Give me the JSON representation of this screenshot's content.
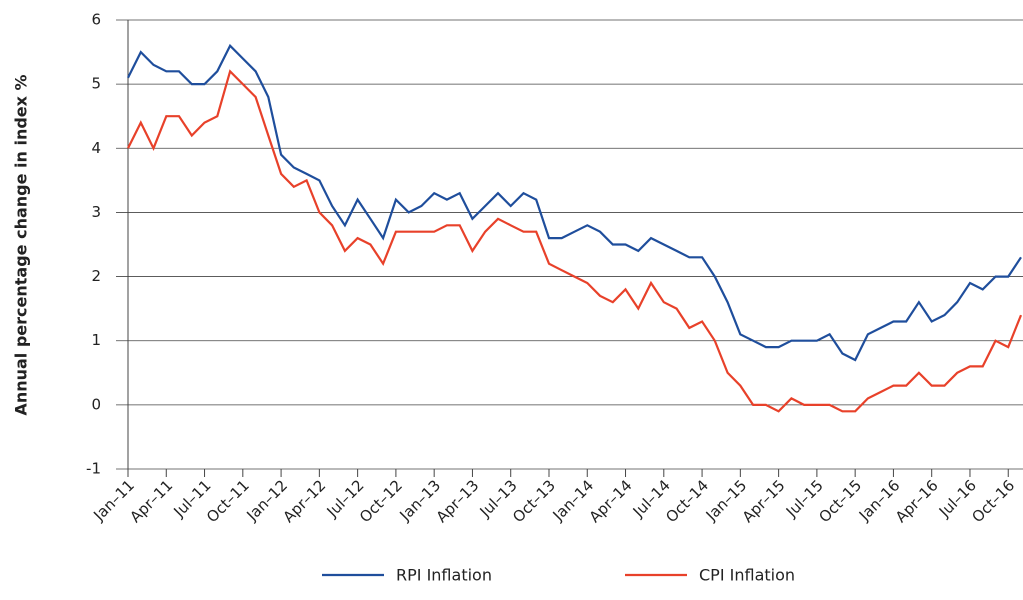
{
  "chart_data": {
    "type": "line",
    "y_label": "Annual percentage change in index %",
    "categories": [
      "Jan–11",
      null,
      null,
      "Apr–11",
      null,
      null,
      "Jul–11",
      null,
      null,
      "Oct–11",
      null,
      null,
      "Jan–12",
      null,
      null,
      "Apr–12",
      null,
      null,
      "Jul–12",
      null,
      null,
      "Oct–12",
      null,
      null,
      "Jan–13",
      null,
      null,
      "Apr–13",
      null,
      null,
      "Jul–13",
      null,
      null,
      "Oct–13",
      null,
      null,
      "Jan–14",
      null,
      null,
      "Apr–14",
      null,
      null,
      "Jul–14",
      null,
      null,
      "Oct–14",
      null,
      null,
      "Jan–15",
      null,
      null,
      "Apr–15",
      null,
      null,
      "Jul–15",
      null,
      null,
      "Oct–15",
      null,
      null,
      "Jan–16",
      null,
      null,
      "Apr–16",
      null,
      null,
      "Jul–16",
      null,
      null,
      "Oct–16",
      null
    ],
    "series": [
      {
        "name": "RPI Inflation",
        "color": "#1f4e9c",
        "values": [
          5.1,
          5.5,
          5.3,
          5.2,
          5.2,
          5.0,
          5.0,
          5.2,
          5.6,
          5.4,
          5.2,
          4.8,
          3.9,
          3.7,
          3.6,
          3.5,
          3.1,
          2.8,
          3.2,
          2.9,
          2.6,
          3.2,
          3.0,
          3.1,
          3.3,
          3.2,
          3.3,
          2.9,
          3.1,
          3.3,
          3.1,
          3.3,
          3.2,
          2.6,
          2.6,
          2.7,
          2.8,
          2.7,
          2.5,
          2.5,
          2.4,
          2.6,
          2.5,
          2.4,
          2.3,
          2.3,
          2.0,
          1.6,
          1.1,
          1.0,
          0.9,
          0.9,
          1.0,
          1.0,
          1.0,
          1.1,
          0.8,
          0.7,
          1.1,
          1.2,
          1.3,
          1.3,
          1.6,
          1.3,
          1.4,
          1.6,
          1.9,
          1.8,
          2.0,
          2.0,
          2.3
        ]
      },
      {
        "name": "CPI Inflation",
        "color": "#e8412a",
        "values": [
          4.0,
          4.4,
          4.0,
          4.5,
          4.5,
          4.2,
          4.4,
          4.5,
          5.2,
          5.0,
          4.8,
          4.2,
          3.6,
          3.4,
          3.5,
          3.0,
          2.8,
          2.4,
          2.6,
          2.5,
          2.2,
          2.7,
          2.7,
          2.7,
          2.7,
          2.8,
          2.8,
          2.4,
          2.7,
          2.9,
          2.8,
          2.7,
          2.7,
          2.2,
          2.1,
          2.0,
          1.9,
          1.7,
          1.6,
          1.8,
          1.5,
          1.9,
          1.6,
          1.5,
          1.2,
          1.3,
          1.0,
          0.5,
          0.3,
          0.0,
          0.0,
          -0.1,
          0.1,
          0.0,
          0.0,
          0.0,
          -0.1,
          -0.1,
          0.1,
          0.2,
          0.3,
          0.3,
          0.5,
          0.3,
          0.3,
          0.5,
          0.6,
          0.6,
          1.0,
          0.9,
          1.4
        ]
      }
    ],
    "ylim": [
      -1,
      6
    ],
    "yticks": [
      -1,
      0,
      1,
      2,
      3,
      4,
      5,
      6
    ],
    "grid": true,
    "legend": "bottom"
  }
}
